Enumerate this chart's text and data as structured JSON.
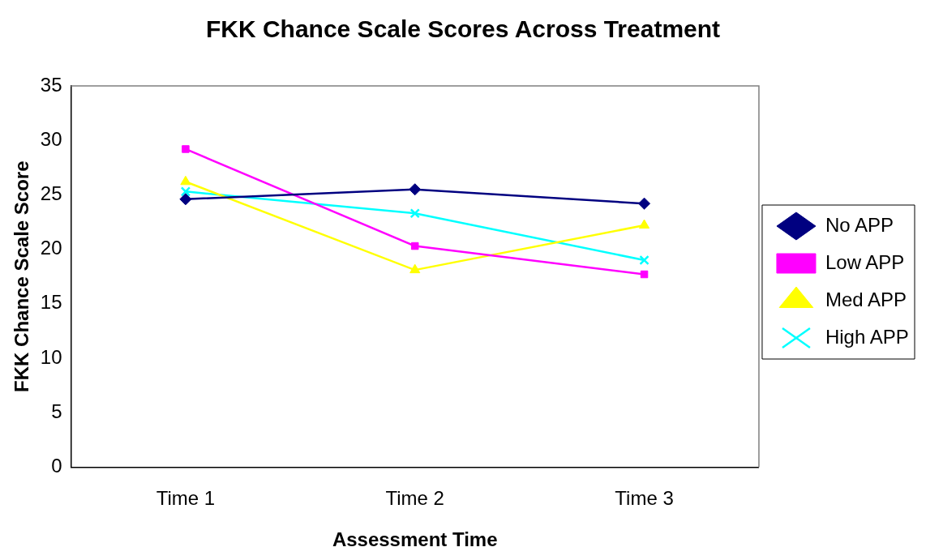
{
  "chart_data": {
    "type": "line",
    "title": "FKK Chance Scale Scores Across Treatment",
    "xlabel": "Assessment Time",
    "ylabel": "FKK Chance Scale Score",
    "categories": [
      "Time 1",
      "Time 2",
      "Time 3"
    ],
    "series": [
      {
        "name": "No APP",
        "color": "#000080",
        "marker": "diamond",
        "values": [
          24.6,
          25.5,
          24.2
        ]
      },
      {
        "name": "Low APP",
        "color": "#ff00ff",
        "marker": "square",
        "values": [
          29.2,
          20.3,
          17.7
        ]
      },
      {
        "name": "Med APP",
        "color": "#ffff00",
        "marker": "triangle",
        "values": [
          26.2,
          18.1,
          22.2
        ]
      },
      {
        "name": "High APP",
        "color": "#00ffff",
        "marker": "cross",
        "values": [
          25.3,
          23.3,
          19.0
        ]
      }
    ],
    "ylim": [
      0,
      35
    ],
    "yticks": [
      0,
      5,
      10,
      15,
      20,
      25,
      30,
      35
    ],
    "grid": false,
    "legend": "right",
    "line_style": "solid"
  }
}
